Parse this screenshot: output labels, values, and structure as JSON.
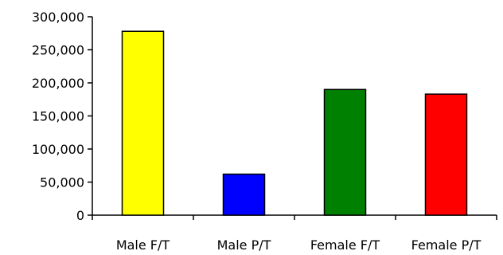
{
  "chart_data": {
    "type": "bar",
    "title": "",
    "xlabel": "",
    "ylabel": "",
    "categories": [
      "Male F/T",
      "Male P/T",
      "Female F/T",
      "Female P/T"
    ],
    "values": [
      278000,
      62000,
      190000,
      183000
    ],
    "colors": [
      "#ffff00",
      "#0000ff",
      "#008000",
      "#ff0000"
    ],
    "ylim": [
      0,
      300000
    ],
    "yticks": [
      0,
      50000,
      100000,
      150000,
      200000,
      250000,
      300000
    ],
    "ytick_labels": [
      "0",
      "50,000",
      "100,000",
      "150,000",
      "200,000",
      "250,000",
      "300,000"
    ],
    "grid": false,
    "legend": "none"
  }
}
